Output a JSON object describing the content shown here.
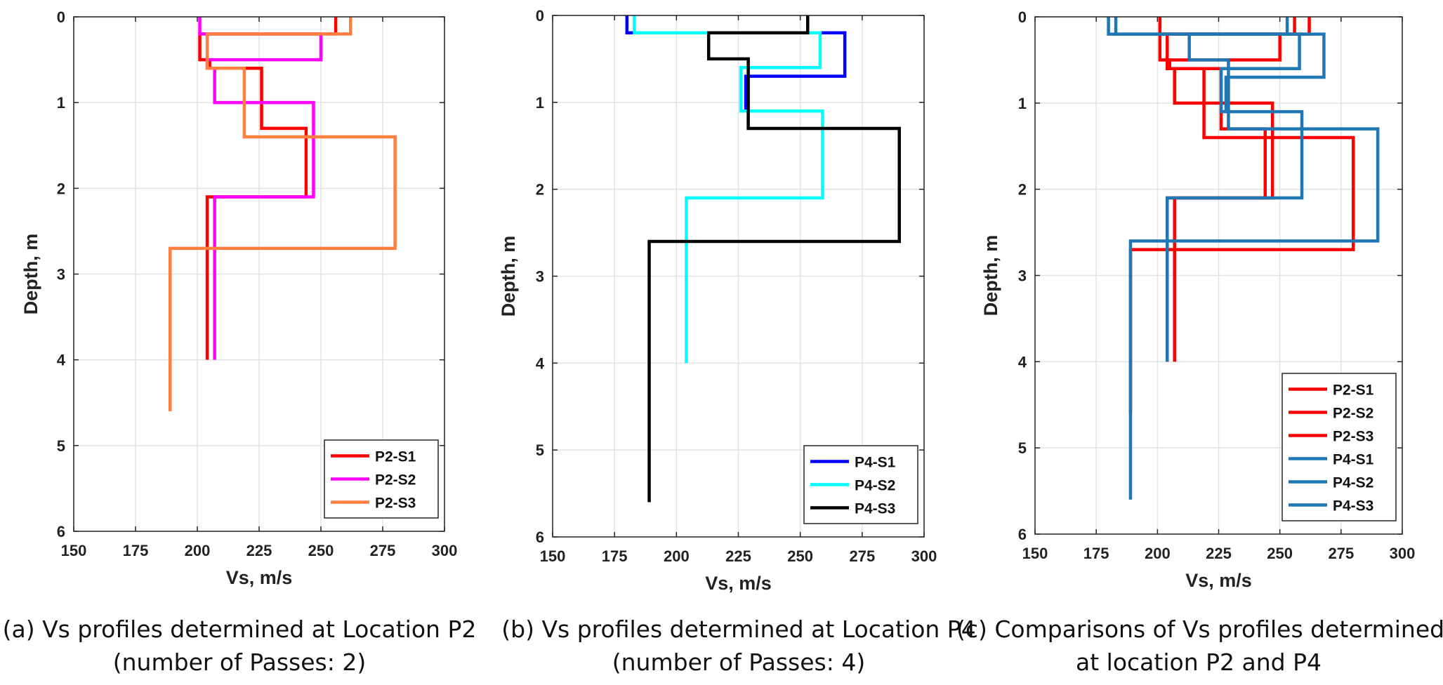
{
  "chart_data": [
    {
      "type": "line",
      "panel": "a",
      "xlabel": "Vs, m/s",
      "ylabel": "Depth, m",
      "xlim": [
        150,
        300
      ],
      "ylim": [
        0,
        6
      ],
      "y_reversed": true,
      "xticks": [
        150,
        175,
        200,
        225,
        250,
        275,
        300
      ],
      "yticks": [
        0,
        1,
        2,
        3,
        4,
        5,
        6
      ],
      "grid": true,
      "legend_position": "bottom-right",
      "series": [
        {
          "name": "P2-S1",
          "color": "#ff0000",
          "layers": [
            [
              256,
              0,
              0.2
            ],
            [
              201,
              0.2,
              0.5
            ],
            [
              205,
              0.5,
              0.6
            ],
            [
              226,
              0.6,
              1.3
            ],
            [
              244,
              1.3,
              2.1
            ],
            [
              204,
              2.1,
              4.0
            ]
          ]
        },
        {
          "name": "P2-S2",
          "color": "#ff00ff",
          "layers": [
            [
              201,
              0,
              0.2
            ],
            [
              250,
              0.2,
              0.5
            ],
            [
              204,
              0.5,
              0.6
            ],
            [
              207,
              0.6,
              1.0
            ],
            [
              247,
              1.0,
              2.1
            ],
            [
              207,
              2.1,
              4.0
            ]
          ]
        },
        {
          "name": "P2-S3",
          "color": "#ff7f3f",
          "layers": [
            [
              262,
              0,
              0.2
            ],
            [
              204,
              0.2,
              0.6
            ],
            [
              219,
              0.6,
              1.4
            ],
            [
              280,
              1.4,
              2.7
            ],
            [
              189,
              2.7,
              4.6
            ]
          ]
        }
      ]
    },
    {
      "type": "line",
      "panel": "b",
      "xlabel": "Vs, m/s",
      "ylabel": "Depth, m",
      "xlim": [
        150,
        300
      ],
      "ylim": [
        0,
        6
      ],
      "y_reversed": true,
      "xticks": [
        150,
        175,
        200,
        225,
        250,
        275,
        300
      ],
      "yticks": [
        0,
        1,
        2,
        3,
        4,
        5,
        6
      ],
      "grid": true,
      "legend_position": "bottom-right",
      "series": [
        {
          "name": "P4-S1",
          "color": "#0000ff",
          "layers": [
            [
              180,
              0,
              0.2
            ],
            [
              268,
              0.2,
              0.7
            ],
            [
              228,
              0.7,
              1.1
            ]
          ]
        },
        {
          "name": "P4-S2",
          "color": "#00ffff",
          "layers": [
            [
              183,
              0,
              0.2
            ],
            [
              258,
              0.2,
              0.6
            ],
            [
              226,
              0.6,
              1.1
            ],
            [
              259,
              1.1,
              2.1
            ],
            [
              204,
              2.1,
              4.0
            ]
          ]
        },
        {
          "name": "P4-S3",
          "color": "#000000",
          "layers": [
            [
              253,
              0,
              0.2
            ],
            [
              213,
              0.2,
              0.5
            ],
            [
              229,
              0.5,
              1.3
            ],
            [
              290,
              1.3,
              2.6
            ],
            [
              189,
              2.6,
              5.6
            ]
          ]
        }
      ]
    },
    {
      "type": "line",
      "panel": "c",
      "xlabel": "Vs, m/s",
      "ylabel": "Depth, m",
      "xlim": [
        150,
        300
      ],
      "ylim": [
        0,
        6
      ],
      "y_reversed": true,
      "xticks": [
        150,
        175,
        200,
        225,
        250,
        275,
        300
      ],
      "yticks": [
        0,
        1,
        2,
        3,
        4,
        5,
        6
      ],
      "grid": true,
      "legend_position": "bottom-right",
      "series": [
        {
          "name": "P2-S1",
          "color": "#ff0000",
          "layers": [
            [
              256,
              0,
              0.2
            ],
            [
              201,
              0.2,
              0.5
            ],
            [
              205,
              0.5,
              0.6
            ],
            [
              226,
              0.6,
              1.3
            ],
            [
              244,
              1.3,
              2.1
            ],
            [
              204,
              2.1,
              4.0
            ]
          ]
        },
        {
          "name": "P2-S2",
          "color": "#ff0000",
          "layers": [
            [
              201,
              0,
              0.2
            ],
            [
              250,
              0.2,
              0.5
            ],
            [
              204,
              0.5,
              0.6
            ],
            [
              207,
              0.6,
              1.0
            ],
            [
              247,
              1.0,
              2.1
            ],
            [
              207,
              2.1,
              4.0
            ]
          ]
        },
        {
          "name": "P2-S3",
          "color": "#ff0000",
          "layers": [
            [
              262,
              0,
              0.2
            ],
            [
              204,
              0.2,
              0.6
            ],
            [
              219,
              0.6,
              1.4
            ],
            [
              280,
              1.4,
              2.7
            ],
            [
              189,
              2.7,
              4.6
            ]
          ]
        },
        {
          "name": "P4-S1",
          "color": "#1f77b4",
          "layers": [
            [
              180,
              0,
              0.2
            ],
            [
              268,
              0.2,
              0.7
            ],
            [
              228,
              0.7,
              1.1
            ]
          ]
        },
        {
          "name": "P4-S2",
          "color": "#1f77b4",
          "layers": [
            [
              183,
              0,
              0.2
            ],
            [
              258,
              0.2,
              0.6
            ],
            [
              226,
              0.6,
              1.1
            ],
            [
              259,
              1.1,
              2.1
            ],
            [
              204,
              2.1,
              4.0
            ]
          ]
        },
        {
          "name": "P4-S3",
          "color": "#1f77b4",
          "layers": [
            [
              253,
              0,
              0.2
            ],
            [
              213,
              0.2,
              0.5
            ],
            [
              229,
              0.5,
              1.3
            ],
            [
              290,
              1.3,
              2.6
            ],
            [
              189,
              2.6,
              5.6
            ]
          ]
        }
      ]
    }
  ],
  "captions": [
    {
      "line1": "(a) Vs profiles determined at Location P2",
      "line2": "(number of Passes: 2)"
    },
    {
      "line1": "(b) Vs profiles determined at Location P4",
      "line2": "(number of Passes: 4)"
    },
    {
      "line1": "(c) Comparisons of Vs profiles determined",
      "line2": "at location P2 and P4"
    }
  ]
}
